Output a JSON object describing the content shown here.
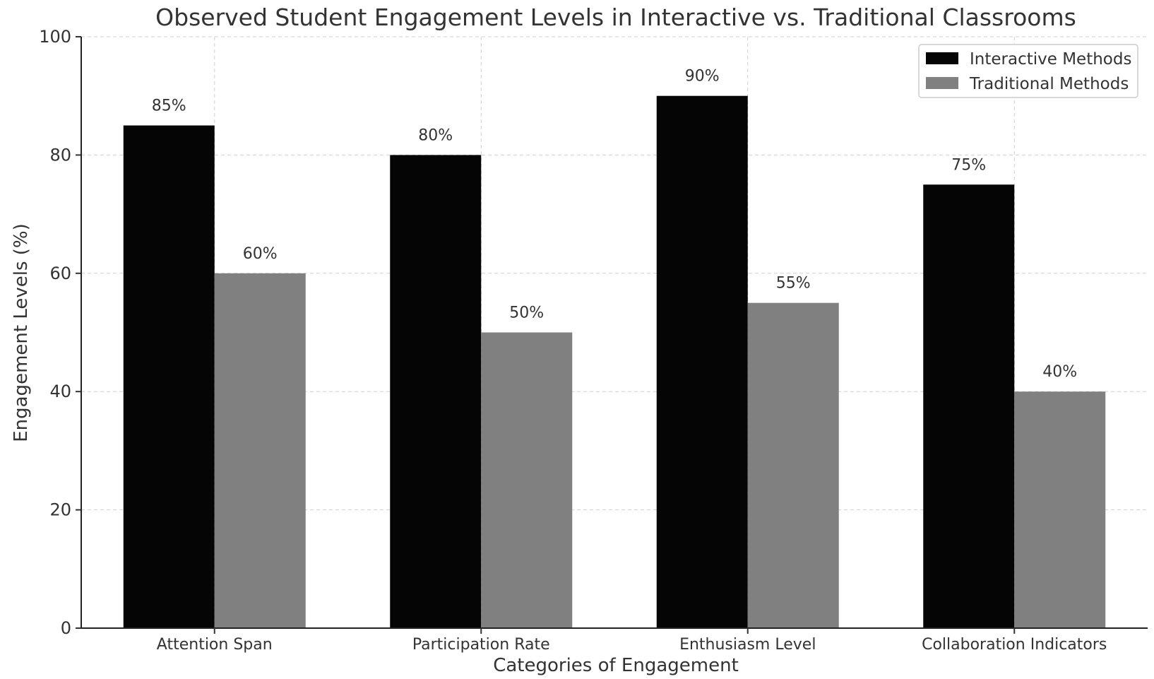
{
  "chart_data": {
    "type": "bar",
    "title": "Observed Student Engagement Levels in Interactive vs. Traditional Classrooms",
    "xlabel": "Categories of Engagement",
    "ylabel": "Engagement Levels (%)",
    "ylim": [
      0,
      100
    ],
    "yticks": [
      0,
      20,
      40,
      60,
      80,
      100
    ],
    "grid": true,
    "legend_position": "top-right",
    "categories": [
      "Attention Span",
      "Participation Rate",
      "Enthusiasm Level",
      "Collaboration Indicators"
    ],
    "series": [
      {
        "name": "Interactive Methods",
        "color": "#050505",
        "values": [
          85,
          80,
          90,
          75
        ],
        "labels": [
          "85%",
          "80%",
          "90%",
          "75%"
        ]
      },
      {
        "name": "Traditional Methods",
        "color": "#808080",
        "values": [
          60,
          50,
          55,
          40
        ],
        "labels": [
          "60%",
          "50%",
          "55%",
          "40%"
        ]
      }
    ]
  }
}
